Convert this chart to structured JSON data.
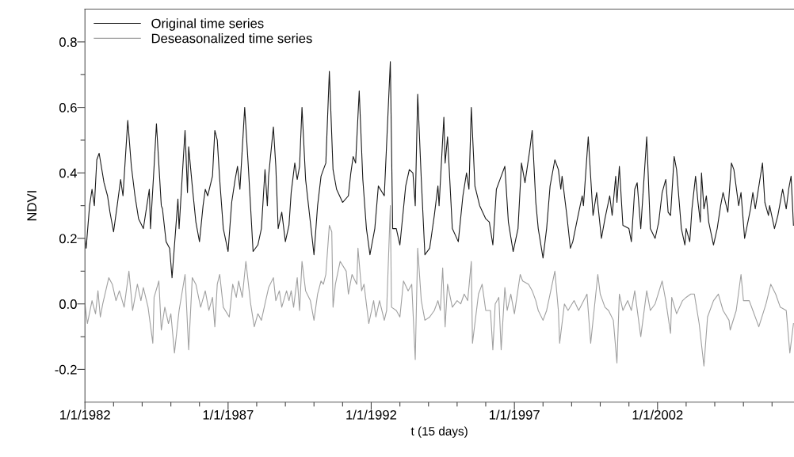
{
  "chart_data": {
    "type": "line",
    "xlabel": "t (15 days)",
    "ylabel": "NDVI",
    "xlim": [
      "1982-01-01",
      "2006-10-08"
    ],
    "ylim": [
      -0.3,
      0.9
    ],
    "xticks": [
      {
        "value": "1982-01-01",
        "label": "1/1/1982"
      },
      {
        "value": "1983-01-01",
        "label": null
      },
      {
        "value": "1984-01-01",
        "label": null
      },
      {
        "value": "1985-01-01",
        "label": null
      },
      {
        "value": "1986-01-01",
        "label": null
      },
      {
        "value": "1987-01-01",
        "label": "1/1/1987"
      },
      {
        "value": "1988-01-01",
        "label": null
      },
      {
        "value": "1989-01-01",
        "label": null
      },
      {
        "value": "1990-01-01",
        "label": null
      },
      {
        "value": "1991-01-01",
        "label": null
      },
      {
        "value": "1992-01-01",
        "label": "1/1/1992"
      },
      {
        "value": "1993-01-01",
        "label": null
      },
      {
        "value": "1994-01-01",
        "label": null
      },
      {
        "value": "1995-01-01",
        "label": null
      },
      {
        "value": "1996-01-01",
        "label": null
      },
      {
        "value": "1997-01-01",
        "label": "1/1/1997"
      },
      {
        "value": "1998-01-01",
        "label": null
      },
      {
        "value": "1999-01-01",
        "label": null
      },
      {
        "value": "2000-01-01",
        "label": null
      },
      {
        "value": "2001-01-01",
        "label": null
      },
      {
        "value": "2002-01-01",
        "label": "1/1/2002"
      },
      {
        "value": "2003-01-01",
        "label": null
      },
      {
        "value": "2004-01-01",
        "label": null
      },
      {
        "value": "2005-01-01",
        "label": null
      },
      {
        "value": "2006-01-01",
        "label": null
      }
    ],
    "yticks": [
      -0.2,
      {
        "value": -0.1,
        "label": null
      },
      {
        "value": 0,
        "label": "0.0"
      },
      {
        "value": 0.1,
        "label": null
      },
      0.2,
      {
        "value": 0.3,
        "label": null
      },
      0.4,
      {
        "value": 0.5,
        "label": null
      },
      0.6,
      {
        "value": 0.7,
        "label": null
      },
      0.8
    ],
    "grid": false,
    "legend": "top left",
    "marker": "none",
    "line_style": "solid",
    "series": [
      {
        "name": "Original time series",
        "color": "#1a1a1a",
        "x": [
          "1982-01-01",
          "1982-01-16",
          "1982-03-01",
          "1982-04-01",
          "1982-05-01",
          "1982-06-01",
          "1982-07-01",
          "1982-09-01",
          "1982-10-16",
          "1982-11-16",
          "1983-01-01",
          "1983-02-16",
          "1983-04-01",
          "1983-05-01",
          "1983-07-01",
          "1983-08-16",
          "1983-10-01",
          "1983-11-16",
          "1984-01-16",
          "1984-04-01",
          "1984-04-16",
          "1984-06-01",
          "1984-07-01",
          "1984-09-01",
          "1984-09-16",
          "1984-11-01",
          "1984-12-16",
          "1985-01-16",
          "1985-03-01",
          "1985-04-01",
          "1985-04-16",
          "1985-05-16",
          "1985-07-01",
          "1985-08-01",
          "1985-08-16",
          "1985-10-01",
          "1985-11-16",
          "1986-01-01",
          "1986-02-16",
          "1986-03-16",
          "1986-04-16",
          "1986-06-16",
          "1986-07-16",
          "1986-08-16",
          "1986-09-16",
          "1986-11-01",
          "1987-01-01",
          "1987-02-16",
          "1987-04-01",
          "1987-05-01",
          "1987-06-01",
          "1987-08-01",
          "1987-09-16",
          "1987-11-16",
          "1988-01-16",
          "1988-03-01",
          "1988-04-16",
          "1988-05-16",
          "1988-06-01",
          "1988-08-01",
          "1988-09-01",
          "1988-10-01",
          "1988-11-16",
          "1989-01-01",
          "1989-02-16",
          "1989-03-16",
          "1989-05-01",
          "1989-06-01",
          "1989-07-01",
          "1989-08-01",
          "1989-09-16",
          "1990-01-01",
          "1990-02-16",
          "1990-04-01",
          "1990-05-01",
          "1990-06-01",
          "1990-07-16",
          "1990-09-01",
          "1990-10-16",
          "1991-01-01",
          "1991-03-16",
          "1991-04-16",
          "1991-05-16",
          "1991-06-16",
          "1991-08-01",
          "1991-09-16",
          "1991-11-01",
          "1991-12-16",
          "1992-02-16",
          "1992-04-01",
          "1992-06-16",
          "1992-09-01",
          "1992-10-01",
          "1992-11-16",
          "1993-01-01",
          "1993-03-16",
          "1993-05-01",
          "1993-06-16",
          "1993-07-16",
          "1993-08-16",
          "1993-10-01",
          "1993-11-16",
          "1994-01-16",
          "1994-03-16",
          "1994-05-01",
          "1994-05-16",
          "1994-07-16",
          "1994-08-01",
          "1994-09-01",
          "1994-11-01",
          "1995-01-16",
          "1995-03-16",
          "1995-05-01",
          "1995-06-01",
          "1995-07-01",
          "1995-08-16",
          "1995-10-16",
          "1996-01-01",
          "1996-02-16",
          "1996-04-01",
          "1996-05-16",
          "1996-07-01",
          "1996-09-01",
          "1996-10-16",
          "1996-12-16",
          "1997-02-16",
          "1997-04-01",
          "1997-05-16",
          "1997-07-16",
          "1997-08-16",
          "1997-10-01",
          "1997-11-01",
          "1998-01-01",
          "1998-02-16",
          "1998-04-01",
          "1998-06-01",
          "1998-07-16",
          "1998-08-16",
          "1998-09-01",
          "1998-11-01",
          "1998-12-16",
          "1999-01-16",
          "1999-03-16",
          "1999-05-16",
          "1999-06-01",
          "1999-08-01",
          "1999-10-01",
          "1999-11-16",
          "2000-01-16",
          "2000-03-01",
          "2000-05-01",
          "2000-06-01",
          "2000-07-16",
          "2000-08-01",
          "2000-09-01",
          "2000-10-16",
          "2001-01-01",
          "2001-02-01",
          "2001-03-16",
          "2001-04-16",
          "2001-06-01",
          "2001-08-16",
          "2001-10-01",
          "2001-12-01",
          "2002-01-16",
          "2002-03-01",
          "2002-04-16",
          "2002-05-16",
          "2002-06-16",
          "2002-08-01",
          "2002-09-01",
          "2002-11-01",
          "2002-12-16",
          "2003-01-01",
          "2003-02-16",
          "2003-03-16",
          "2003-05-01",
          "2003-06-01",
          "2003-07-01",
          "2003-07-16",
          "2003-08-16",
          "2003-09-16",
          "2003-10-16",
          "2003-12-16",
          "2004-02-01",
          "2004-03-16",
          "2004-04-16",
          "2004-06-16",
          "2004-08-01",
          "2004-09-01",
          "2004-11-01",
          "2004-12-01",
          "2005-01-16",
          "2005-04-01",
          "2005-05-01",
          "2005-06-01",
          "2005-09-01",
          "2005-10-01",
          "2005-11-16",
          "2005-12-01",
          "2006-02-01",
          "2006-03-16",
          "2006-05-16",
          "2006-07-01",
          "2006-08-01",
          "2006-09-01",
          "2006-10-01"
        ],
        "values": [
          0.2,
          0.17,
          0.3,
          0.35,
          0.3,
          0.44,
          0.46,
          0.37,
          0.33,
          0.28,
          0.22,
          0.3,
          0.38,
          0.33,
          0.56,
          0.42,
          0.33,
          0.26,
          0.23,
          0.35,
          0.23,
          0.42,
          0.55,
          0.3,
          0.29,
          0.19,
          0.17,
          0.08,
          0.22,
          0.32,
          0.23,
          0.35,
          0.53,
          0.34,
          0.48,
          0.36,
          0.25,
          0.19,
          0.3,
          0.35,
          0.33,
          0.39,
          0.53,
          0.5,
          0.38,
          0.23,
          0.16,
          0.31,
          0.38,
          0.42,
          0.35,
          0.6,
          0.42,
          0.16,
          0.18,
          0.23,
          0.41,
          0.3,
          0.39,
          0.54,
          0.42,
          0.23,
          0.28,
          0.19,
          0.24,
          0.34,
          0.43,
          0.38,
          0.42,
          0.6,
          0.38,
          0.15,
          0.3,
          0.39,
          0.41,
          0.43,
          0.71,
          0.41,
          0.35,
          0.31,
          0.33,
          0.4,
          0.45,
          0.43,
          0.65,
          0.38,
          0.23,
          0.15,
          0.23,
          0.36,
          0.33,
          0.74,
          0.23,
          0.23,
          0.18,
          0.36,
          0.41,
          0.4,
          0.3,
          0.64,
          0.38,
          0.15,
          0.17,
          0.27,
          0.36,
          0.3,
          0.57,
          0.43,
          0.51,
          0.23,
          0.19,
          0.33,
          0.4,
          0.35,
          0.6,
          0.36,
          0.3,
          0.26,
          0.25,
          0.18,
          0.35,
          0.38,
          0.42,
          0.25,
          0.16,
          0.23,
          0.43,
          0.37,
          0.47,
          0.53,
          0.31,
          0.23,
          0.14,
          0.23,
          0.36,
          0.44,
          0.41,
          0.35,
          0.39,
          0.27,
          0.17,
          0.19,
          0.26,
          0.33,
          0.3,
          0.51,
          0.27,
          0.34,
          0.2,
          0.26,
          0.33,
          0.27,
          0.39,
          0.31,
          0.42,
          0.24,
          0.23,
          0.19,
          0.35,
          0.37,
          0.23,
          0.51,
          0.23,
          0.2,
          0.25,
          0.34,
          0.38,
          0.28,
          0.27,
          0.45,
          0.41,
          0.23,
          0.18,
          0.23,
          0.19,
          0.29,
          0.39,
          0.31,
          0.25,
          0.4,
          0.29,
          0.33,
          0.25,
          0.18,
          0.23,
          0.3,
          0.34,
          0.28,
          0.43,
          0.41,
          0.3,
          0.34,
          0.2,
          0.29,
          0.34,
          0.29,
          0.43,
          0.31,
          0.27,
          0.3,
          0.23,
          0.27,
          0.35,
          0.29,
          0.35,
          0.39,
          0.24
        ]
      },
      {
        "name": "Deseasonalized time series",
        "color": "#a0a0a0",
        "x": [
          "1982-01-01",
          "1982-02-01",
          "1982-04-01",
          "1982-05-16",
          "1982-06-16",
          "1982-07-16",
          "1982-08-16",
          "1982-11-01",
          "1982-12-16",
          "1983-02-01",
          "1983-03-16",
          "1983-05-16",
          "1983-07-16",
          "1983-09-01",
          "1983-11-01",
          "1983-12-16",
          "1984-01-16",
          "1984-03-16",
          "1984-05-16",
          "1984-06-01",
          "1984-08-01",
          "1984-09-01",
          "1984-10-16",
          "1984-12-01",
          "1985-01-01",
          "1985-02-16",
          "1985-04-16",
          "1985-07-01",
          "1985-08-16",
          "1985-10-01",
          "1985-11-16",
          "1986-01-16",
          "1986-03-16",
          "1986-05-01",
          "1986-06-16",
          "1986-07-16",
          "1986-08-16",
          "1986-09-16",
          "1986-11-01",
          "1987-01-16",
          "1987-03-01",
          "1987-04-16",
          "1987-05-16",
          "1987-07-01",
          "1987-08-16",
          "1987-10-16",
          "1987-12-01",
          "1988-01-16",
          "1988-03-01",
          "1988-04-16",
          "1988-06-01",
          "1988-08-01",
          "1988-09-01",
          "1988-10-16",
          "1988-11-16",
          "1989-01-16",
          "1989-02-16",
          "1989-03-16",
          "1989-04-16",
          "1989-06-01",
          "1989-07-01",
          "1989-08-01",
          "1989-09-16",
          "1989-11-16",
          "1990-01-01",
          "1990-02-16",
          "1990-04-01",
          "1990-05-01",
          "1990-06-01",
          "1990-07-16",
          "1990-08-16",
          "1990-09-01",
          "1990-10-01",
          "1990-12-01",
          "1991-02-16",
          "1991-03-16",
          "1991-05-01",
          "1991-07-01",
          "1991-07-16",
          "1991-09-01",
          "1991-10-01",
          "1991-12-01",
          "1992-02-01",
          "1992-03-01",
          "1992-04-16",
          "1992-06-16",
          "1992-07-16",
          "1992-09-01",
          "1992-09-16",
          "1992-11-16",
          "1993-01-01",
          "1993-02-16",
          "1993-04-16",
          "1993-06-01",
          "1993-07-16",
          "1993-08-16",
          "1993-10-01",
          "1993-11-16",
          "1994-01-16",
          "1994-03-16",
          "1994-05-01",
          "1994-06-01",
          "1994-07-01",
          "1994-08-01",
          "1994-09-01",
          "1994-11-01",
          "1995-01-01",
          "1995-02-16",
          "1995-04-01",
          "1995-05-16",
          "1995-07-01",
          "1995-07-16",
          "1995-10-01",
          "1995-11-16",
          "1996-01-01",
          "1996-03-01",
          "1996-04-01",
          "1996-05-01",
          "1996-06-16",
          "1996-07-16",
          "1996-09-01",
          "1996-10-01",
          "1996-11-16",
          "1997-01-01",
          "1997-03-16",
          "1997-04-16",
          "1997-07-01",
          "1997-08-16",
          "1997-10-01",
          "1997-11-01",
          "1998-01-01",
          "1998-02-16",
          "1998-04-01",
          "1998-06-01",
          "1998-07-16",
          "1998-08-01",
          "1998-10-01",
          "1998-11-16",
          "1999-02-01",
          "1999-04-01",
          "1999-07-16",
          "1999-09-01",
          "1999-12-01",
          "2000-01-01",
          "2000-03-01",
          "2000-04-16",
          "2000-06-16",
          "2000-08-01",
          "2000-09-01",
          "2000-10-16",
          "2000-12-16",
          "2001-02-01",
          "2001-03-16",
          "2001-06-01",
          "2001-08-16",
          "2001-10-01",
          "2001-12-01",
          "2002-03-01",
          "2002-04-16",
          "2002-06-16",
          "2002-07-01",
          "2002-09-01",
          "2002-11-16",
          "2003-01-01",
          "2003-03-01",
          "2003-04-16",
          "2003-06-16",
          "2003-08-16",
          "2003-10-01",
          "2003-12-16",
          "2004-02-16",
          "2004-04-16",
          "2004-07-01",
          "2004-07-16",
          "2004-10-01",
          "2004-12-01",
          "2005-01-01",
          "2005-03-16",
          "2005-05-01",
          "2005-06-16",
          "2005-07-16",
          "2005-10-16",
          "2005-12-16",
          "2006-02-16",
          "2006-04-16",
          "2006-07-01",
          "2006-08-16",
          "2006-10-01"
        ],
        "values": [
          0.0,
          -0.06,
          0.01,
          -0.03,
          0.04,
          -0.04,
          0.0,
          0.08,
          0.06,
          0.01,
          0.04,
          -0.01,
          0.1,
          -0.02,
          0.06,
          0.01,
          0.05,
          -0.01,
          -0.12,
          0.02,
          0.07,
          -0.08,
          -0.01,
          -0.06,
          -0.03,
          -0.15,
          -0.02,
          0.09,
          -0.14,
          0.08,
          0.06,
          -0.01,
          0.04,
          -0.02,
          0.02,
          -0.07,
          0.06,
          0.09,
          -0.01,
          -0.04,
          0.06,
          0.02,
          0.07,
          0.02,
          0.13,
          0.0,
          -0.07,
          -0.03,
          -0.05,
          0.0,
          0.05,
          0.08,
          0.01,
          0.04,
          -0.01,
          0.04,
          0.01,
          0.04,
          -0.01,
          0.08,
          -0.02,
          0.13,
          0.04,
          0.01,
          -0.05,
          0.03,
          0.07,
          0.06,
          0.09,
          0.24,
          0.22,
          -0.01,
          0.06,
          0.13,
          0.1,
          0.03,
          0.09,
          0.06,
          0.17,
          0.04,
          0.06,
          -0.06,
          0.01,
          -0.04,
          0.01,
          -0.05,
          -0.02,
          0.3,
          -0.01,
          -0.02,
          -0.04,
          0.07,
          0.04,
          0.06,
          -0.17,
          0.17,
          0.01,
          -0.05,
          -0.04,
          -0.02,
          0.01,
          -0.02,
          0.11,
          -0.07,
          0.06,
          -0.01,
          0.01,
          0.0,
          0.03,
          0.01,
          0.13,
          -0.12,
          0.03,
          0.06,
          -0.02,
          -0.02,
          -0.14,
          0.0,
          0.02,
          -0.14,
          0.05,
          -0.02,
          0.03,
          -0.03,
          0.09,
          0.07,
          0.06,
          0.04,
          0.01,
          -0.02,
          -0.05,
          -0.02,
          0.03,
          0.1,
          -0.02,
          -0.12,
          0.0,
          -0.02,
          0.01,
          -0.02,
          0.03,
          -0.12,
          0.09,
          0.03,
          -0.01,
          -0.02,
          -0.05,
          -0.18,
          0.03,
          -0.02,
          0.01,
          -0.02,
          0.04,
          -0.1,
          0.04,
          -0.02,
          0.0,
          0.07,
          0.01,
          -0.09,
          0.02,
          -0.03,
          0.01,
          0.02,
          0.03,
          0.03,
          -0.06,
          -0.19,
          -0.04,
          0.01,
          0.03,
          -0.02,
          -0.05,
          -0.08,
          -0.02,
          0.09,
          0.01,
          0.01,
          -0.02,
          -0.05,
          -0.07,
          0.0,
          0.06,
          0.03,
          -0.01,
          -0.02,
          -0.15,
          -0.06
        ]
      }
    ]
  }
}
